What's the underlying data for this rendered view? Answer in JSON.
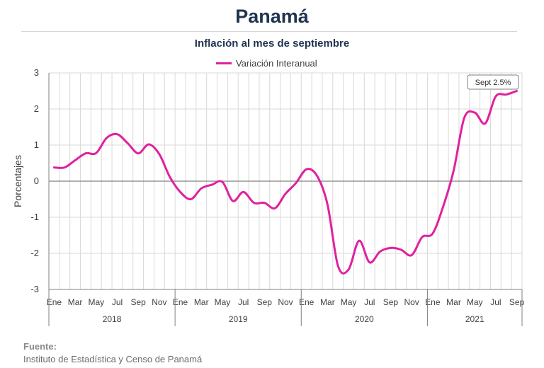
{
  "header": {
    "title": "Panamá",
    "subtitle": "Inflación al mes de septiembre"
  },
  "source": {
    "label": "Fuente:",
    "text": "Instituto de Estadística y Censo de Panamá"
  },
  "colors": {
    "series": "#e0219e",
    "title": "#1f3350"
  },
  "chart_data": {
    "type": "line",
    "ylabel": "Porcentajes",
    "xlabel": "",
    "ylim": [
      -3,
      3
    ],
    "yticks": [
      3,
      2,
      1,
      0,
      -1,
      -2,
      -3
    ],
    "grid": true,
    "legend_position": "top-center",
    "month_tick_labels": [
      "Ene",
      "Mar",
      "May",
      "Jul",
      "Sep",
      "Nov"
    ],
    "month_tick_labels_last_year": [
      "Ene",
      "Mar",
      "May",
      "Jul",
      "Sep"
    ],
    "years": [
      "2018",
      "2019",
      "2020",
      "2021"
    ],
    "x": [
      "2018-01",
      "2018-02",
      "2018-03",
      "2018-04",
      "2018-05",
      "2018-06",
      "2018-07",
      "2018-08",
      "2018-09",
      "2018-10",
      "2018-11",
      "2018-12",
      "2019-01",
      "2019-02",
      "2019-03",
      "2019-04",
      "2019-05",
      "2019-06",
      "2019-07",
      "2019-08",
      "2019-09",
      "2019-10",
      "2019-11",
      "2019-12",
      "2020-01",
      "2020-02",
      "2020-03",
      "2020-04",
      "2020-05",
      "2020-06",
      "2020-07",
      "2020-08",
      "2020-09",
      "2020-10",
      "2020-11",
      "2020-12",
      "2021-01",
      "2021-02",
      "2021-03",
      "2021-04",
      "2021-05",
      "2021-06",
      "2021-07",
      "2021-08",
      "2021-09"
    ],
    "series": [
      {
        "name": "Variación Interanual",
        "values": [
          0.38,
          0.38,
          0.58,
          0.77,
          0.78,
          1.2,
          1.3,
          1.05,
          0.77,
          1.02,
          0.75,
          0.12,
          -0.3,
          -0.5,
          -0.2,
          -0.1,
          -0.02,
          -0.55,
          -0.3,
          -0.6,
          -0.6,
          -0.75,
          -0.35,
          -0.05,
          0.33,
          0.15,
          -0.65,
          -2.35,
          -2.45,
          -1.65,
          -2.25,
          -1.95,
          -1.85,
          -1.9,
          -2.05,
          -1.55,
          -1.45,
          -0.7,
          0.3,
          1.75,
          1.9,
          1.6,
          2.35,
          2.4,
          2.5
        ]
      }
    ],
    "annotation": {
      "text": "Sept 2.5%"
    }
  }
}
